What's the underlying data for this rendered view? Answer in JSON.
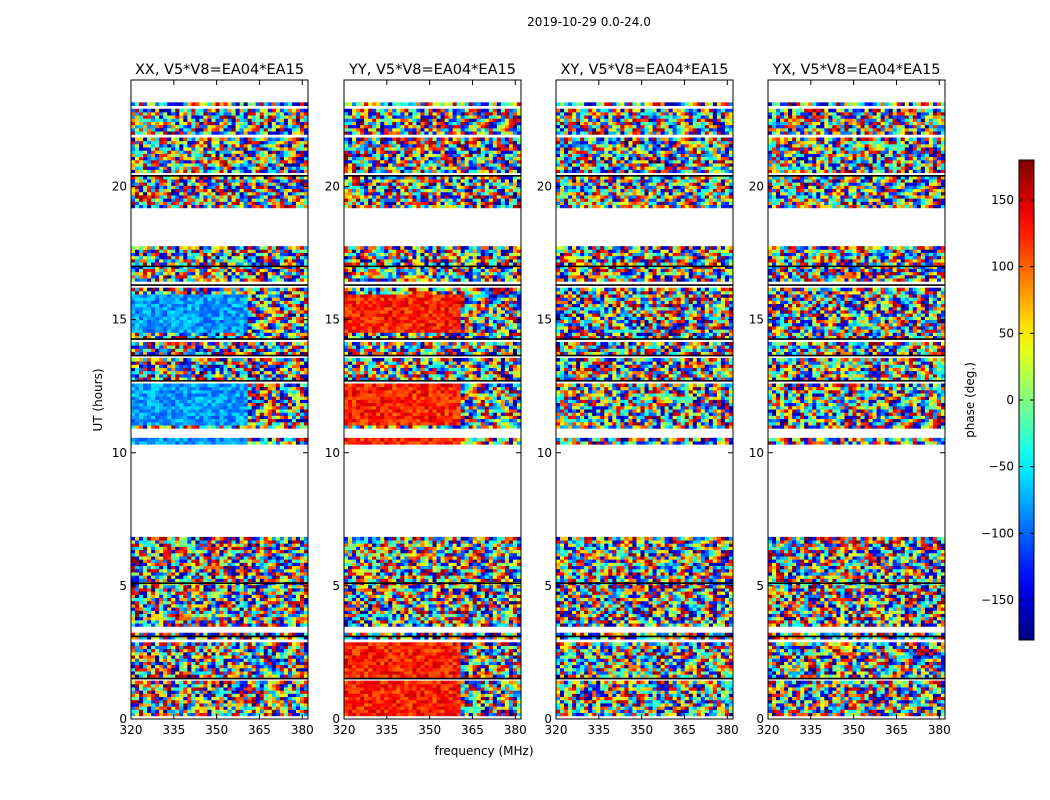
{
  "figure": {
    "suptitle": "2019-10-29 0.0-24.0",
    "xlabel": "frequency (MHz)",
    "ylabel": "UT (hours)"
  },
  "chart_data": {
    "type": "heatmap",
    "suptitle": "2019-10-29 0.0-24.0",
    "xlabel": "frequency (MHz)",
    "ylabel": "UT (hours)",
    "xlim": [
      320,
      382
    ],
    "ylim": [
      0,
      24
    ],
    "xticks": [
      320,
      335,
      350,
      365,
      380
    ],
    "yticks": [
      0,
      5,
      10,
      15,
      20
    ],
    "colormap": "jet",
    "colorbar": {
      "label": "phase (deg.)",
      "range": [
        -180,
        180
      ],
      "ticks": [
        -150,
        -100,
        -50,
        0,
        50,
        100,
        150
      ],
      "tick_labels": [
        "−150",
        "−100",
        "−50",
        "0",
        "50",
        "100",
        "150"
      ]
    },
    "data_gaps_hours": [
      [
        6.8,
        10.3
      ],
      [
        17.8,
        19.2
      ],
      [
        23.2,
        24.0
      ]
    ],
    "panels": [
      {
        "title": "XX, V5*V8=EA04*EA15",
        "coherent_phase_deg": -80,
        "coherent_hours": [
          [
            10.3,
            10.6
          ],
          [
            11.0,
            12.6
          ],
          [
            14.5,
            16.0
          ]
        ],
        "coherent_freq_mhz": [
          320,
          361
        ]
      },
      {
        "title": "YY, V5*V8=EA04*EA15",
        "coherent_phase_deg": 125,
        "coherent_hours": [
          [
            0.1,
            1.5
          ],
          [
            1.6,
            2.9
          ],
          [
            10.3,
            10.6
          ],
          [
            11.0,
            12.6
          ],
          [
            14.5,
            16.0
          ]
        ],
        "coherent_freq_mhz": [
          320,
          361
        ]
      },
      {
        "title": "XY, V5*V8=EA04*EA15",
        "coherent_phase_deg": null,
        "coherent_hours": [],
        "coherent_freq_mhz": []
      },
      {
        "title": "YX, V5*V8=EA04*EA15",
        "coherent_phase_deg": null,
        "coherent_hours": [],
        "coherent_freq_mhz": []
      }
    ]
  }
}
